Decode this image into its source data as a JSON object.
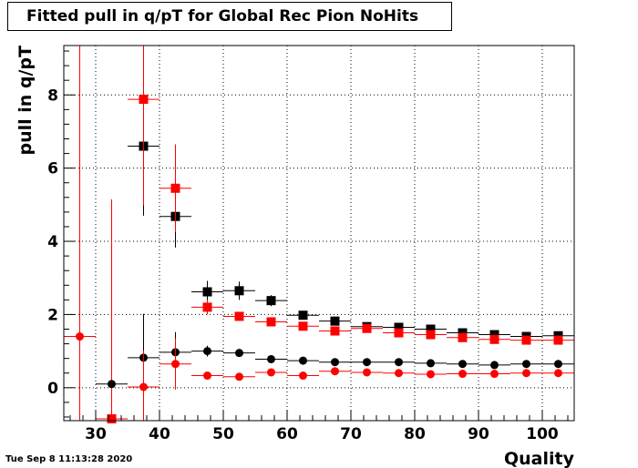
{
  "header": {
    "title": "Fitted pull in q/pT for Global Rec Pion NoHits",
    "timestamp": "Tue Sep  8 11:13:28 2020"
  },
  "chart_data": {
    "type": "scatter",
    "title": "Fitted pull in q/pT for Global Rec Pion NoHits",
    "xlabel": "Quality",
    "ylabel": "pull in q/pT",
    "xlim": [
      25,
      105
    ],
    "ylim": [
      -0.9,
      9.35
    ],
    "xticks": [
      30,
      40,
      50,
      60,
      70,
      80,
      90,
      100
    ],
    "yticks": [
      0,
      2,
      4,
      6,
      8
    ],
    "grid": true,
    "bin_width": 5,
    "series": [
      {
        "marker": "square",
        "color": "#000000",
        "points": [
          {
            "x": 37.5,
            "y": 6.6,
            "err": 1.9
          },
          {
            "x": 42.5,
            "y": 4.68,
            "err": 0.85
          },
          {
            "x": 47.5,
            "y": 2.62,
            "err": 0.3
          },
          {
            "x": 52.5,
            "y": 2.65,
            "err": 0.25
          },
          {
            "x": 57.5,
            "y": 2.38,
            "err": 0.15
          },
          {
            "x": 62.5,
            "y": 1.98,
            "err": 0.08
          },
          {
            "x": 67.5,
            "y": 1.82,
            "err": 0.06
          },
          {
            "x": 72.5,
            "y": 1.67,
            "err": 0.05
          },
          {
            "x": 77.5,
            "y": 1.65,
            "err": 0.05
          },
          {
            "x": 82.5,
            "y": 1.6,
            "err": 0.05
          },
          {
            "x": 87.5,
            "y": 1.5,
            "err": 0.04
          },
          {
            "x": 92.5,
            "y": 1.45,
            "err": 0.04
          },
          {
            "x": 97.5,
            "y": 1.4,
            "err": 0.04
          },
          {
            "x": 102.5,
            "y": 1.42,
            "err": 0.04
          }
        ]
      },
      {
        "marker": "square",
        "color": "#ff0000",
        "points": [
          {
            "x": 32.5,
            "y": -0.85,
            "err": 6.0
          },
          {
            "x": 37.5,
            "y": 7.88,
            "err": 2.9
          },
          {
            "x": 42.5,
            "y": 5.45,
            "err": 1.2
          },
          {
            "x": 47.5,
            "y": 2.2,
            "err": 0.2
          },
          {
            "x": 52.5,
            "y": 1.95,
            "err": 0.1
          },
          {
            "x": 57.5,
            "y": 1.8,
            "err": 0.08
          },
          {
            "x": 62.5,
            "y": 1.68,
            "err": 0.06
          },
          {
            "x": 67.5,
            "y": 1.55,
            "err": 0.05
          },
          {
            "x": 72.5,
            "y": 1.62,
            "err": 0.05
          },
          {
            "x": 77.5,
            "y": 1.5,
            "err": 0.04
          },
          {
            "x": 82.5,
            "y": 1.45,
            "err": 0.04
          },
          {
            "x": 87.5,
            "y": 1.37,
            "err": 0.04
          },
          {
            "x": 92.5,
            "y": 1.32,
            "err": 0.04
          },
          {
            "x": 97.5,
            "y": 1.3,
            "err": 0.04
          },
          {
            "x": 102.5,
            "y": 1.3,
            "err": 0.04
          }
        ]
      },
      {
        "marker": "circle",
        "color": "#000000",
        "points": [
          {
            "x": 32.5,
            "y": 0.1,
            "err": 0.1
          },
          {
            "x": 37.5,
            "y": 0.82,
            "err": 1.2
          },
          {
            "x": 42.5,
            "y": 0.97,
            "err": 0.55
          },
          {
            "x": 47.5,
            "y": 1.0,
            "err": 0.15
          },
          {
            "x": 52.5,
            "y": 0.95,
            "err": 0.1
          },
          {
            "x": 57.5,
            "y": 0.78,
            "err": 0.07
          },
          {
            "x": 62.5,
            "y": 0.74,
            "err": 0.05
          },
          {
            "x": 67.5,
            "y": 0.7,
            "err": 0.04
          },
          {
            "x": 72.5,
            "y": 0.7,
            "err": 0.04
          },
          {
            "x": 77.5,
            "y": 0.7,
            "err": 0.03
          },
          {
            "x": 82.5,
            "y": 0.67,
            "err": 0.03
          },
          {
            "x": 87.5,
            "y": 0.65,
            "err": 0.03
          },
          {
            "x": 92.5,
            "y": 0.62,
            "err": 0.03
          },
          {
            "x": 97.5,
            "y": 0.65,
            "err": 0.03
          },
          {
            "x": 102.5,
            "y": 0.65,
            "err": 0.03
          }
        ]
      },
      {
        "marker": "circle",
        "color": "#ff0000",
        "points": [
          {
            "x": 27.5,
            "y": 1.4,
            "err": 9.0
          },
          {
            "x": 37.5,
            "y": 0.02,
            "err": 1.0
          },
          {
            "x": 42.5,
            "y": 0.65,
            "err": 0.7
          },
          {
            "x": 47.5,
            "y": 0.33,
            "err": 0.1
          },
          {
            "x": 52.5,
            "y": 0.3,
            "err": 0.07
          },
          {
            "x": 57.5,
            "y": 0.42,
            "err": 0.06
          },
          {
            "x": 62.5,
            "y": 0.33,
            "err": 0.04
          },
          {
            "x": 67.5,
            "y": 0.45,
            "err": 0.04
          },
          {
            "x": 72.5,
            "y": 0.42,
            "err": 0.03
          },
          {
            "x": 77.5,
            "y": 0.4,
            "err": 0.03
          },
          {
            "x": 82.5,
            "y": 0.37,
            "err": 0.03
          },
          {
            "x": 87.5,
            "y": 0.38,
            "err": 0.03
          },
          {
            "x": 92.5,
            "y": 0.38,
            "err": 0.03
          },
          {
            "x": 97.5,
            "y": 0.4,
            "err": 0.03
          },
          {
            "x": 102.5,
            "y": 0.4,
            "err": 0.03
          }
        ]
      }
    ]
  }
}
